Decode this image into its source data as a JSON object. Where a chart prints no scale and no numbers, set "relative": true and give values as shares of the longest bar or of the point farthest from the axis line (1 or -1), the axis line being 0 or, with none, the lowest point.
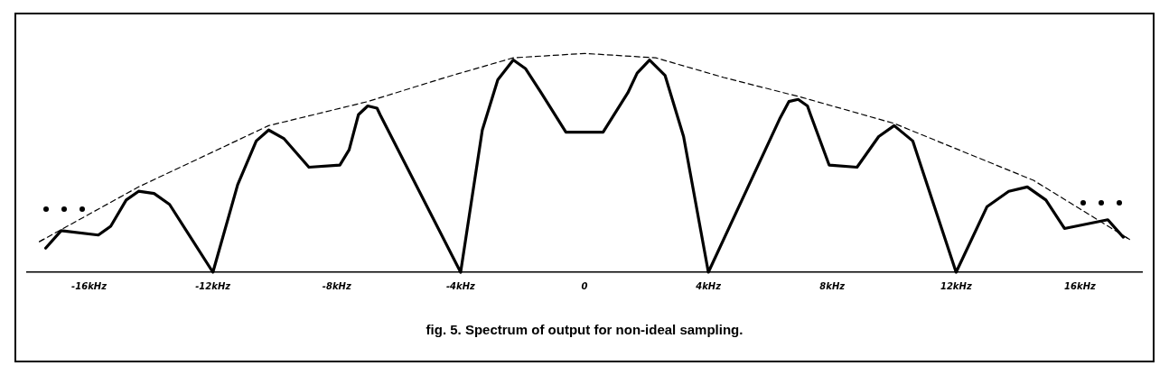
{
  "chart_data": {
    "type": "line",
    "title": "fig. 5. Spectrum of output for non-ideal sampling.",
    "relative": true,
    "xlim": [
      -18,
      18
    ],
    "xticks": [
      {
        "value": -16,
        "label": "-16kHz"
      },
      {
        "value": -12,
        "label": "-12kHz"
      },
      {
        "value": -8,
        "label": "-8kHz"
      },
      {
        "value": -4,
        "label": "-4kHz"
      },
      0,
      {
        "value": 4,
        "label": "4kHz"
      },
      {
        "value": 8,
        "label": "8kHz"
      },
      {
        "value": 12,
        "label": "12kHz"
      },
      {
        "value": 16,
        "label": "16kHz"
      }
    ],
    "grid": false,
    "legend": false,
    "marker": "none",
    "series": [
      {
        "color": "#000000",
        "line_style": "solid",
        "x": [
          -17.4,
          -16.9,
          -15.7,
          -15.3,
          -14.8,
          -14.4,
          -13.9,
          -13.4,
          -12,
          -11.2,
          -10.6,
          -10.2,
          -9.7,
          -8.9,
          -7.9,
          -7.6,
          -7.3,
          -7.0,
          -6.7,
          -6.6,
          -4,
          -3.3,
          -2.8,
          -2.3,
          -1.9,
          -1.4,
          -0.6,
          0,
          0.6,
          1.4,
          1.7,
          2.1,
          2.6,
          3.2,
          4,
          6.3,
          6.6,
          6.9,
          7.2,
          7.3,
          7.9,
          8.8,
          9.5,
          10.0,
          10.6,
          12,
          13.0,
          13.7,
          14.3,
          14.9,
          15.5,
          16.9,
          17.4
        ],
        "values": [
          0.11,
          0.19,
          0.17,
          0.21,
          0.33,
          0.37,
          0.36,
          0.31,
          0,
          0.4,
          0.6,
          0.65,
          0.61,
          0.48,
          0.49,
          0.56,
          0.72,
          0.76,
          0.75,
          0.72,
          0,
          0.65,
          0.88,
          0.97,
          0.93,
          0.82,
          0.64,
          0.64,
          0.64,
          0.82,
          0.91,
          0.97,
          0.9,
          0.62,
          0,
          0.7,
          0.78,
          0.79,
          0.76,
          0.72,
          0.49,
          0.48,
          0.62,
          0.67,
          0.6,
          0,
          0.3,
          0.37,
          0.39,
          0.33,
          0.2,
          0.24,
          0.16
        ]
      },
      {
        "color": "#000000",
        "line_style": "dashed",
        "x": [
          -17.6,
          -14.4,
          -10.2,
          -7.0,
          -4.5,
          -2.3,
          0,
          2.3,
          4.5,
          7.0,
          10.0,
          14.5,
          17.6
        ],
        "values": [
          0.14,
          0.39,
          0.67,
          0.78,
          0.89,
          0.98,
          1,
          0.98,
          0.89,
          0.8,
          0.68,
          0.42,
          0.15
        ]
      }
    ]
  }
}
